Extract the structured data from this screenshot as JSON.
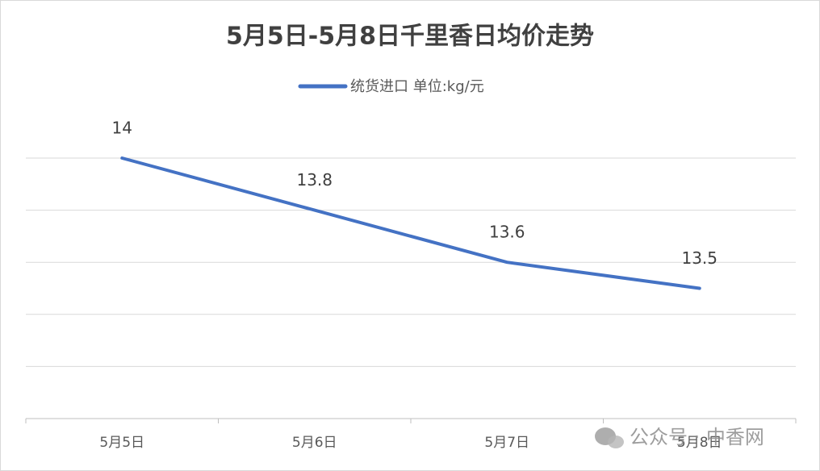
{
  "chart_data": {
    "type": "line",
    "title": "5月5日-5月8日千里香日均价走势",
    "categories": [
      "5月5日",
      "5月6日",
      "5月7日",
      "5月8日"
    ],
    "series": [
      {
        "name": "统货进口 单位:kg/元",
        "color": "#4472c4",
        "values": [
          14,
          13.8,
          13.6,
          13.5
        ]
      }
    ],
    "ylim": [
      13,
      14
    ],
    "yticks": [
      13,
      13.2,
      13.4,
      13.6,
      13.8,
      14
    ],
    "grid": true,
    "legend": "top"
  },
  "watermark": "公众号 · 中香网"
}
